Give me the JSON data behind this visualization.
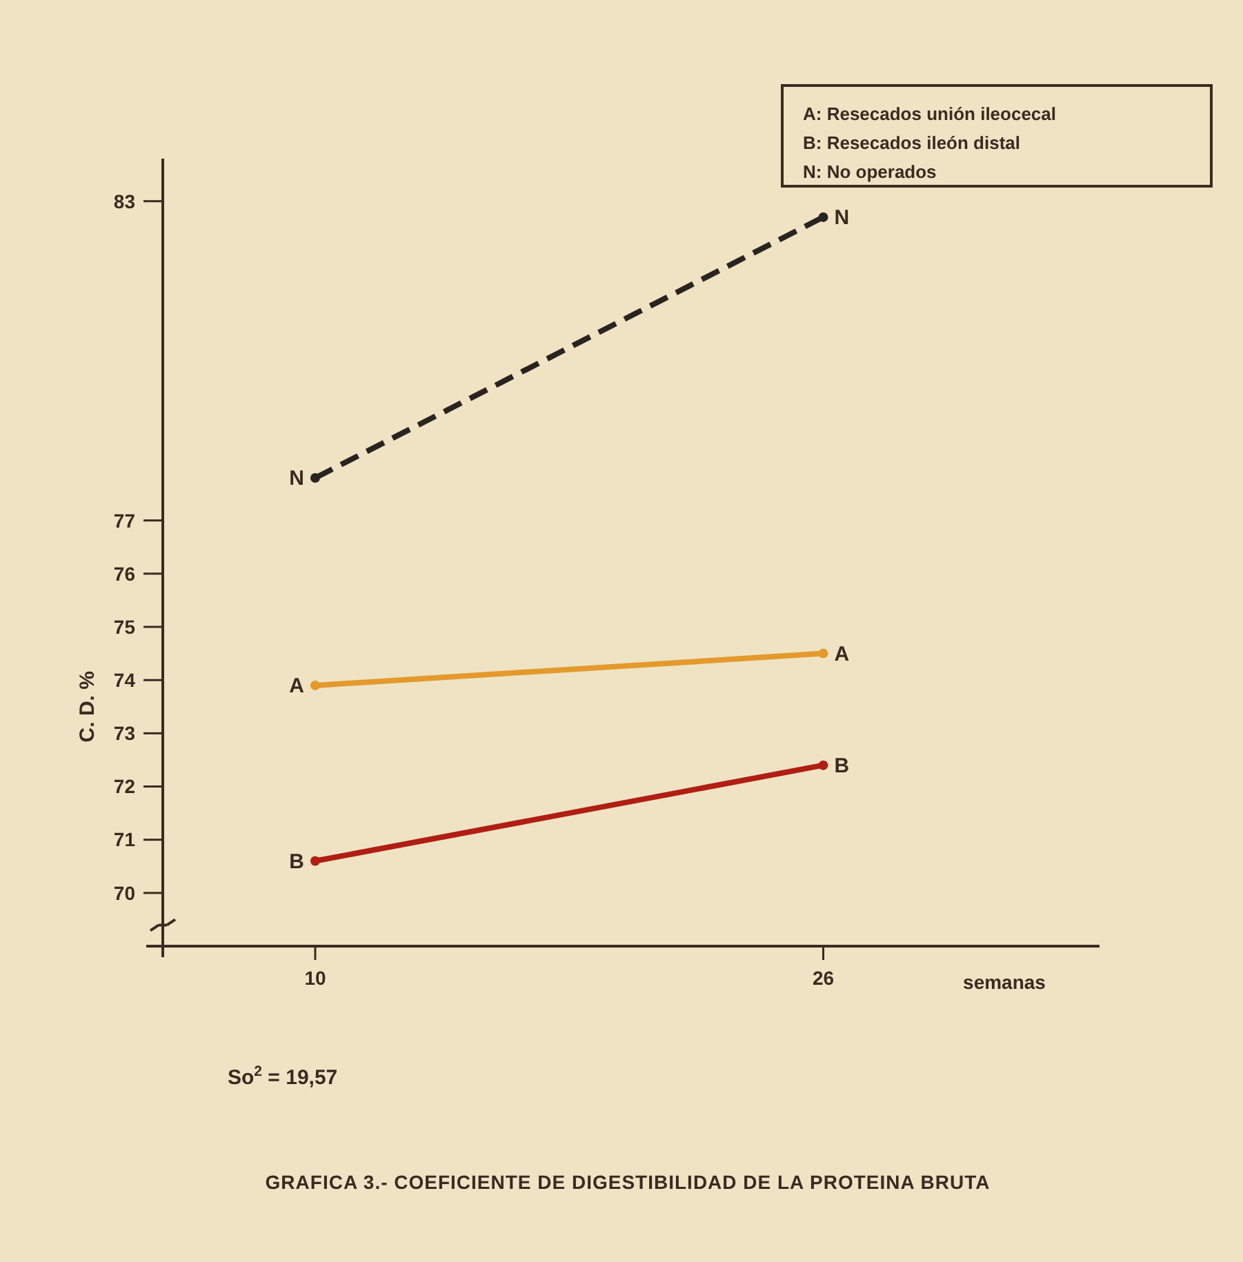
{
  "chart_data": {
    "type": "line",
    "title": "GRAFICA 3.- COEFICIENTE DE DIGESTIBILIDAD DE LA PROTEINA BRUTA",
    "xlabel": "semanas",
    "ylabel": "C. D. %",
    "x": [
      10,
      26
    ],
    "xlim": [
      5.2,
      34.7
    ],
    "xticks": [
      10,
      26
    ],
    "ylim": [
      69,
      83.8
    ],
    "yticks": [
      70,
      71,
      72,
      73,
      74,
      75,
      76,
      77,
      83
    ],
    "series": [
      {
        "name": "N",
        "color": "#2a2420",
        "values": [
          77.8,
          82.7
        ],
        "line_style": "dashed"
      },
      {
        "name": "A",
        "color": "#e39a2c",
        "values": [
          73.9,
          74.5
        ],
        "line_style": "solid"
      },
      {
        "name": "B",
        "color": "#b01e14",
        "values": [
          70.6,
          72.4
        ],
        "line_style": "solid"
      }
    ],
    "marker": "circle",
    "grid": false,
    "annotations": [
      "A: Resecados unión ileocecal",
      "B: Resecados ileón distal",
      "N: No operados",
      "So$^{2}$ = 19,57"
    ]
  }
}
